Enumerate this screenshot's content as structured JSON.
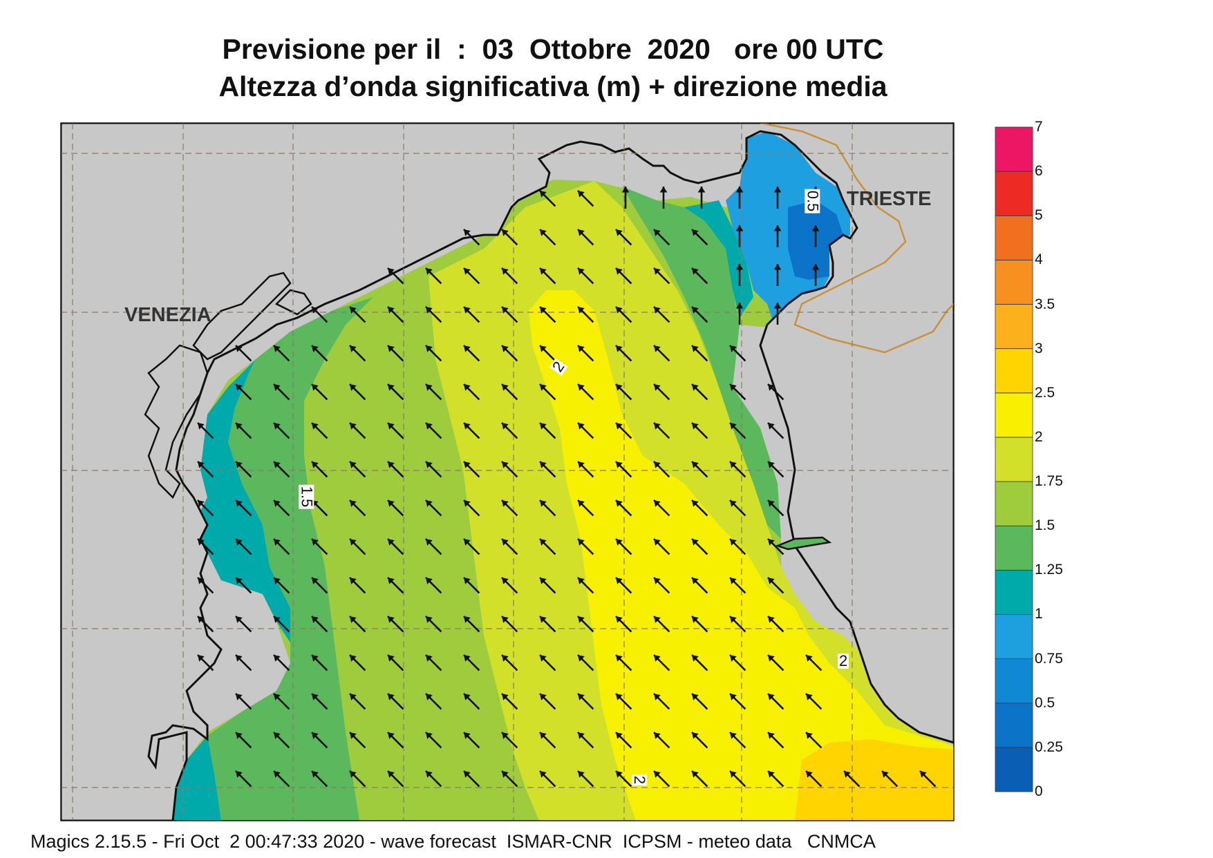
{
  "title": {
    "line1": "Previsione per il  :  03  Ottobre  2020   ore 00 UTC",
    "line2": "Altezza d’onda significativa (m) + direzione media"
  },
  "map": {
    "cities": [
      "VENEZIA",
      "TRIESTE"
    ],
    "contour_labels": [
      "2",
      "1.5",
      "0.5",
      "2",
      "2"
    ],
    "land_color": "#c8c8c8",
    "coast_color": "#111111",
    "border_color": "#c8913a"
  },
  "legend": {
    "unit": "m",
    "levels": [
      "0",
      "0.25",
      "0.5",
      "0.75",
      "1",
      "1.25",
      "1.5",
      "1.75",
      "2",
      "2.5",
      "3",
      "3.5",
      "4",
      "5",
      "6",
      "7"
    ],
    "colors": [
      "#0a5fb4",
      "#0b74c8",
      "#1088d4",
      "#1ea0e0",
      "#00aaaa",
      "#5cb85c",
      "#9fcc3c",
      "#d2e02a",
      "#f7f000",
      "#ffd400",
      "#fbb01c",
      "#f7901e",
      "#f07020",
      "#ee2a24",
      "#ec1664"
    ]
  },
  "footer": "Magics 2.15.5 - Fri Oct  2 00:47:33 2020 - wave forecast  ISMAR-CNR  ICPSM - meteo data   CNMCA"
}
